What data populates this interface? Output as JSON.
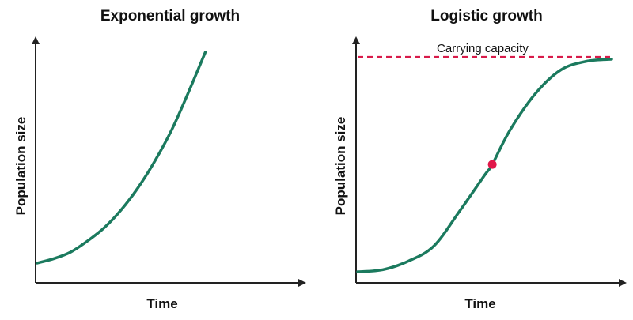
{
  "colors": {
    "curve": "#1b7a5e",
    "capacity_line": "#d81b4a",
    "midpoint": "#e0184a",
    "axes": "#222222"
  },
  "chart_data": [
    {
      "type": "line",
      "title": "Exponential growth",
      "xlabel": "Time",
      "ylabel": "Population size",
      "ticks": "none",
      "series": [
        {
          "x": [
            0,
            0.1,
            0.2,
            0.3,
            0.4,
            0.5,
            0.6,
            0.7,
            0.8,
            0.9,
            1.0
          ],
          "y": [
            0.05,
            0.07,
            0.1,
            0.15,
            0.21,
            0.29,
            0.39,
            0.51,
            0.65,
            0.82,
            1.0
          ]
        }
      ],
      "xlim": [
        0,
        1.6
      ],
      "ylim": [
        0,
        1.1
      ]
    },
    {
      "type": "line",
      "title": "Logistic growth",
      "xlabel": "Time",
      "ylabel": "Population size",
      "ticks": "none",
      "annotation": "Carrying capacity",
      "carrying_capacity": 1.0,
      "midpoint": {
        "x": 0.53,
        "y": 0.5
      },
      "series": [
        {
          "x": [
            0,
            0.1,
            0.2,
            0.3,
            0.4,
            0.5,
            0.53,
            0.6,
            0.7,
            0.8,
            0.9,
            1.0
          ],
          "y": [
            0.0,
            0.01,
            0.05,
            0.12,
            0.28,
            0.45,
            0.5,
            0.66,
            0.83,
            0.94,
            0.98,
            0.99
          ]
        }
      ],
      "xlim": [
        0,
        1.0
      ],
      "ylim": [
        0,
        1.1
      ]
    }
  ]
}
